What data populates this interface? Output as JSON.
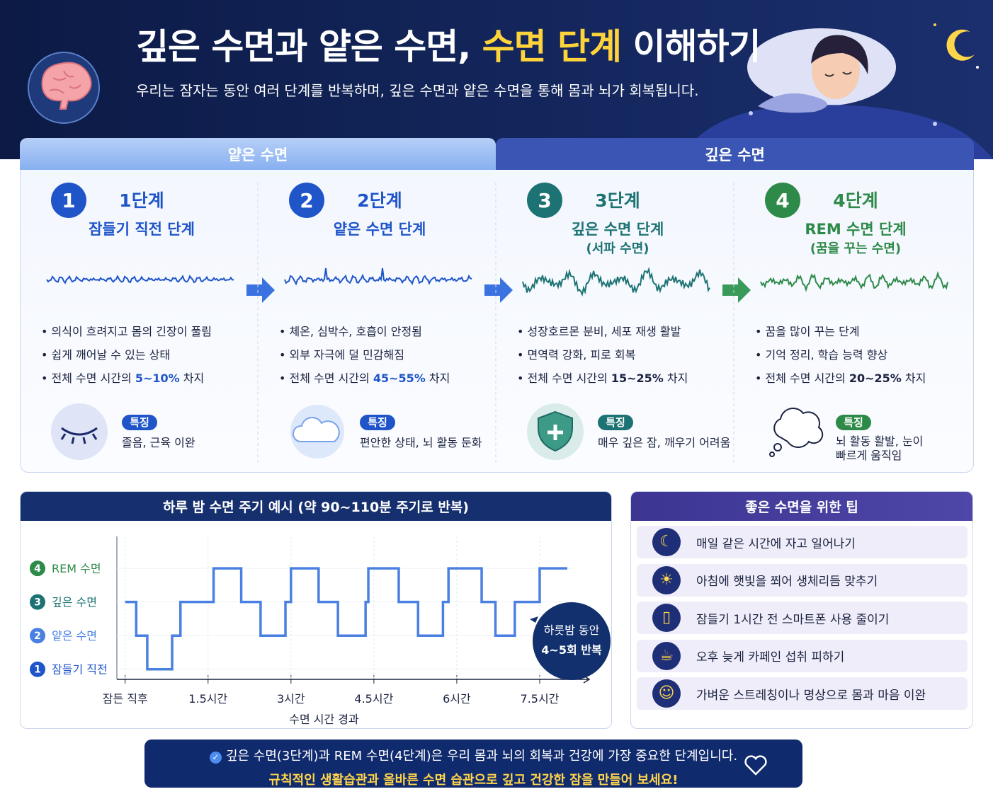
{
  "header": {
    "title_parts": [
      "깊은 수면과 얕은 수면, ",
      "수면 단계",
      " 이해하기"
    ],
    "subtitle": "우리는 잠자는 동안 여러 단계를 반복하며, 깊은 수면과 얕은 수면을 통해 몸과 뇌가 회복됩니다."
  },
  "tabs": [
    "얕은 수면",
    "깊은 수면"
  ],
  "stages": [
    {
      "number": 1,
      "name": "1단계",
      "subtitle": "잠들기 직전 단계",
      "subtitle2": null,
      "bullets": [
        "의식이 흐려지고 몸의 긴장이 풀림",
        "쉽게 깨어날 수 있는 상태"
      ],
      "share": {
        "prefix": "전체 수면 시간의 ",
        "value": "5~10%",
        "suffix": " 차지"
      },
      "badge": "특징",
      "feature": "졸음, 근육 이완",
      "color": "#1f55c9"
    },
    {
      "number": 2,
      "name": "2단계",
      "subtitle": "얕은 수면 단계",
      "subtitle2": null,
      "bullets": [
        "체온, 심박수, 호흡이 안정됨",
        "외부 자극에 덜 민감해짐"
      ],
      "share": {
        "prefix": "전체 수면 시간의 ",
        "value": "45~55%",
        "suffix": " 차지"
      },
      "badge": "특징",
      "feature": "편안한 상태, 뇌 활동 둔화",
      "color": "#1f55c9"
    },
    {
      "number": 3,
      "name": "3단계",
      "subtitle": "깊은 수면 단계",
      "subtitle2": "(서파 수면)",
      "bullets": [
        "성장호르몬 분비, 세포 재생 활발",
        "면역력 강화, 피로 회복"
      ],
      "share": {
        "prefix": "전체 수면 시간의 ",
        "value": "15~25%",
        "suffix": " 차지"
      },
      "badge": "특징",
      "feature": "매우 깊은 잠, 깨우기 어려움",
      "color": "#1d7373"
    },
    {
      "number": 4,
      "name": "4단계",
      "subtitle": "REM 수면 단계",
      "subtitle2": "(꿈을 꾸는 수면)",
      "bullets": [
        "꿈을 많이 꾸는 단계",
        "기억 정리, 학습 능력 향상"
      ],
      "share": {
        "prefix": "전체 수면 시간의 ",
        "value": "20~25%",
        "suffix": " 차지"
      },
      "badge": "특징",
      "feature": "뇌 활동 활발, 눈이 빠르게 움직임",
      "color": "#2e8a48"
    }
  ],
  "chart_data": {
    "type": "step",
    "title": "하루 밤 수면 주기 예시 (약 90~110분 주기로 반복)",
    "x_label": "수면 시간 경과",
    "x": [
      0,
      0.2,
      0.4,
      0.85,
      1.0,
      1.6,
      2.1,
      2.45,
      2.9,
      3.0,
      3.5,
      3.85,
      4.35,
      4.4,
      4.95,
      5.3,
      5.75,
      5.85,
      6.45,
      6.7,
      7.05,
      7.5,
      8.0
    ],
    "values": [
      3,
      2,
      1,
      2,
      3,
      4,
      3,
      2,
      3,
      4,
      3,
      2,
      3,
      4,
      3,
      2,
      3,
      4,
      3,
      2,
      3,
      4,
      4
    ],
    "color": "#4a80e2",
    "xlim": [
      -0.15,
      8.5
    ],
    "xticks": [
      {
        "value": 0,
        "label": "잠든 직후"
      },
      {
        "value": 1.5,
        "label": "1.5시간"
      },
      {
        "value": 3,
        "label": "3시간"
      },
      {
        "value": 4.5,
        "label": "4.5시간"
      },
      {
        "value": 6,
        "label": "6시간"
      },
      {
        "value": 7.5,
        "label": "7.5시간"
      }
    ],
    "ylim": [
      0.7,
      4.95
    ],
    "yticks": [
      {
        "value": 4,
        "label": "REM 수면"
      },
      {
        "value": 3,
        "label": "깊은 수면"
      },
      {
        "value": 2,
        "label": "얕은 수면"
      },
      {
        "value": 1,
        "label": "잠들기 직전"
      }
    ],
    "callout": [
      "하룻밤 동안",
      "4~5회 반복"
    ]
  },
  "tips": {
    "title": "좋은 수면을 위한 팁",
    "items": [
      "매일 같은 시간에 자고 일어나기",
      "아침에 햇빛을 쬐어 생체리듬 맞추기",
      "잠들기 1시간 전 스마트폰 사용 줄이기",
      "오후 늦게 카페인 섭취 피하기",
      "가벼운 스트레칭이나 명상으로 몸과 마음 이완"
    ]
  },
  "footer": {
    "line1": "깊은 수면(3단계)과 REM 수면(4단계)은 우리 몸과 뇌의 회복과 건강에 가장 중요한 단계입니다.",
    "line2": "규칙적인 생활습관과 올바른 수면 습관으로 깊고 건강한 잠을 만들어 보세요!"
  }
}
